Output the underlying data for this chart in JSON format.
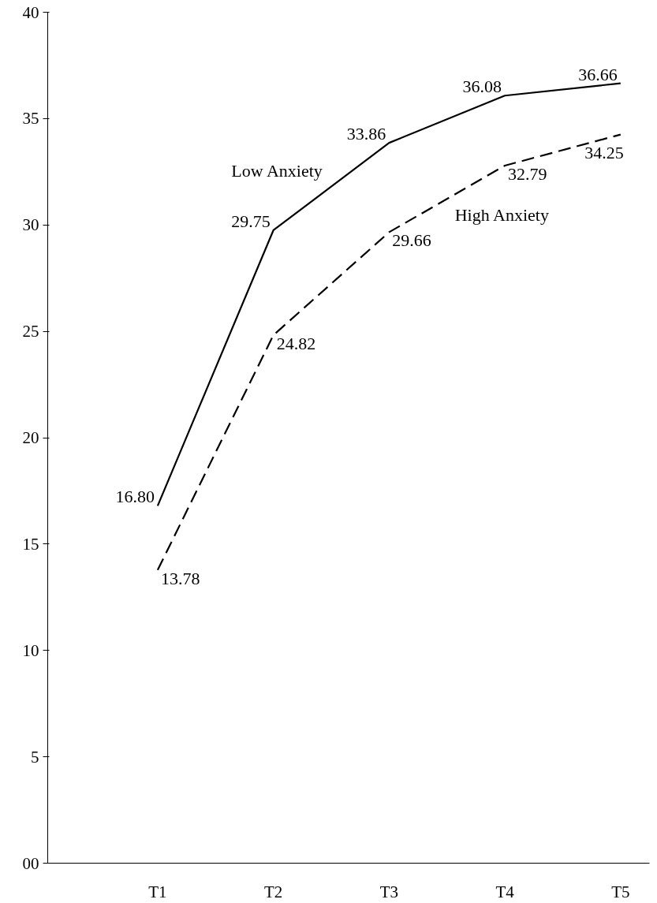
{
  "chart_data": {
    "type": "line",
    "categories": [
      "T1",
      "T2",
      "T3",
      "T4",
      "T5"
    ],
    "series": [
      {
        "name": "Low Anxiety",
        "color": "#000000",
        "line_style": "solid",
        "values": [
          16.8,
          29.75,
          33.86,
          36.08,
          36.66
        ],
        "value_labels": [
          "16.80",
          "29.75",
          "33.86",
          "36.08",
          "36.66"
        ]
      },
      {
        "name": "High Anxiety",
        "color": "#000000",
        "line_style": "dashed",
        "values": [
          13.78,
          24.82,
          29.66,
          32.79,
          34.25
        ],
        "value_labels": [
          "13.78",
          "24.82",
          "29.66",
          "32.79",
          "34.25"
        ]
      }
    ],
    "ylim": [
      0,
      40
    ],
    "yticks": [
      {
        "value": 0,
        "label": "00"
      },
      5,
      10,
      15,
      20,
      25,
      30,
      35,
      40
    ],
    "grid": false,
    "marker": "none"
  }
}
